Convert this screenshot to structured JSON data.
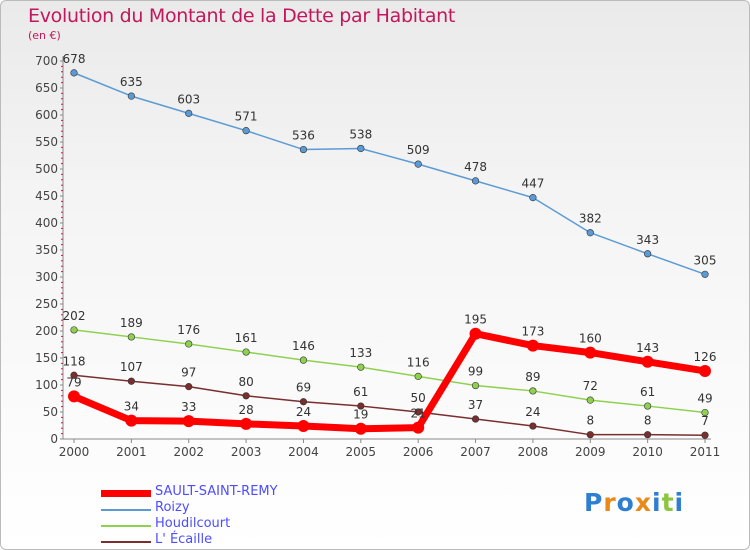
{
  "title": "Evolution du Montant de la Dette par Habitant",
  "subtitle": "(en €)",
  "logo": {
    "text": "Proxiti",
    "colors": [
      "#2e7fd1",
      "#e8891a",
      "#2e7fd1",
      "#e8891a",
      "#2e7fd1",
      "#8cc63f",
      "#2e7fd1"
    ]
  },
  "chart_data": {
    "type": "line",
    "title": "Evolution du Montant de la Dette par Habitant",
    "ylabel": "(en €)",
    "xlabel": "",
    "ylim": [
      0,
      700
    ],
    "yticks": [
      0,
      50,
      100,
      150,
      200,
      250,
      300,
      350,
      400,
      450,
      500,
      550,
      600,
      650,
      700
    ],
    "categories": [
      "2000",
      "2001",
      "2002",
      "2003",
      "2004",
      "2005",
      "2006",
      "2007",
      "2008",
      "2009",
      "2010",
      "2011"
    ],
    "grid": false,
    "legend_position": "bottom-left",
    "series": [
      {
        "name": "SAULT-SAINT-REMY",
        "color": "#ff0000",
        "values": [
          79,
          34,
          33,
          28,
          24,
          19,
          21,
          195,
          173,
          160,
          143,
          126
        ]
      },
      {
        "name": "Roizy",
        "color": "#5b9bd5",
        "values": [
          678,
          635,
          603,
          571,
          536,
          538,
          509,
          478,
          447,
          382,
          343,
          305
        ]
      },
      {
        "name": "Houdilcourt",
        "color": "#8fd14f",
        "values": [
          202,
          189,
          176,
          161,
          146,
          133,
          116,
          99,
          89,
          72,
          61,
          49
        ]
      },
      {
        "name": "L' Écaille",
        "color": "#7a2e2e",
        "values": [
          118,
          107,
          97,
          80,
          69,
          61,
          50,
          37,
          24,
          8,
          8,
          7
        ]
      }
    ]
  }
}
